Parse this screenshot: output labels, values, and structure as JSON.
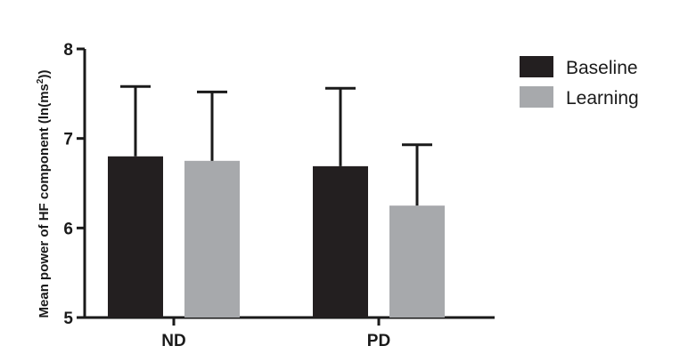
{
  "chart_data": {
    "type": "bar",
    "categories": [
      "ND",
      "PD"
    ],
    "series": [
      {
        "name": "Baseline",
        "color": "#231f20",
        "values": [
          6.8,
          6.69
        ],
        "error": [
          0.78,
          0.87
        ]
      },
      {
        "name": "Learning",
        "color": "#a7a9ac",
        "values": [
          6.75,
          6.25
        ],
        "error": [
          0.77,
          0.68
        ]
      }
    ],
    "ylabel_main": "Mean power of HF component (ln(ms",
    "ylabel_sup": "2",
    "ylabel_end": "))",
    "ylim": [
      5,
      8
    ],
    "yticks": [
      "5",
      "6",
      "7",
      "8"
    ],
    "legend_position": "top-right",
    "grid": false
  }
}
